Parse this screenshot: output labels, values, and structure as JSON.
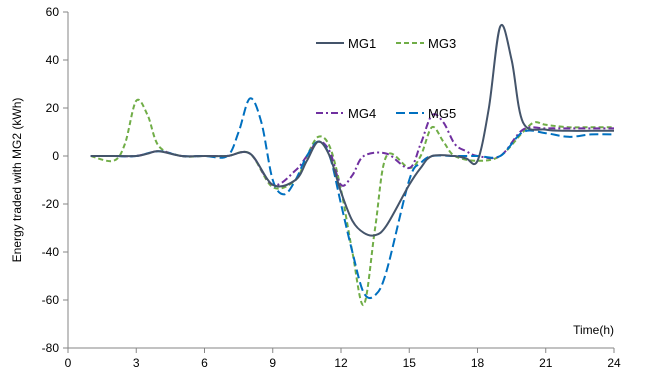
{
  "chart_data": {
    "type": "line",
    "title": "",
    "xlabel": "Time(h)",
    "ylabel": "Energy traded with MG2 (kWh)",
    "xlim": [
      0,
      24
    ],
    "ylim": [
      -80,
      60
    ],
    "xticks": [
      0,
      3,
      6,
      9,
      12,
      15,
      18,
      21,
      24
    ],
    "yticks": [
      -80,
      -60,
      -40,
      -20,
      0,
      20,
      40,
      60
    ],
    "grid": false,
    "legend_placement": "top-center",
    "series": [
      {
        "name": "MG1",
        "color": "#44546A",
        "dash": "solid",
        "points": [
          [
            1,
            0
          ],
          [
            2,
            0
          ],
          [
            3,
            0
          ],
          [
            3.5,
            1
          ],
          [
            4,
            2
          ],
          [
            5,
            0
          ],
          [
            6,
            0
          ],
          [
            7,
            0
          ],
          [
            8,
            1
          ],
          [
            9,
            -12
          ],
          [
            10,
            -10
          ],
          [
            10.5,
            -2
          ],
          [
            11,
            6
          ],
          [
            11.5,
            0
          ],
          [
            12,
            -15
          ],
          [
            12.5,
            -27
          ],
          [
            13,
            -32
          ],
          [
            13.5,
            -33
          ],
          [
            14,
            -29
          ],
          [
            15,
            -12
          ],
          [
            15.5,
            -5
          ],
          [
            16,
            0
          ],
          [
            17,
            0
          ],
          [
            17.5,
            -1
          ],
          [
            18,
            -2
          ],
          [
            18.5,
            20
          ],
          [
            19,
            54
          ],
          [
            19.5,
            40
          ],
          [
            20,
            14
          ],
          [
            21,
            11
          ],
          [
            22,
            10.5
          ],
          [
            23,
            10.5
          ],
          [
            24,
            10.5
          ]
        ]
      },
      {
        "name": "MG3",
        "color": "#70AD47",
        "dash": "5,3",
        "points": [
          [
            1,
            0
          ],
          [
            2,
            -2
          ],
          [
            2.5,
            5
          ],
          [
            3,
            23
          ],
          [
            3.5,
            17
          ],
          [
            4,
            4
          ],
          [
            5,
            0
          ],
          [
            6,
            0
          ],
          [
            7,
            0
          ],
          [
            8,
            1
          ],
          [
            9,
            -13
          ],
          [
            10,
            -10
          ],
          [
            10.5,
            0
          ],
          [
            11,
            8
          ],
          [
            11.5,
            4
          ],
          [
            12,
            -14
          ],
          [
            12.5,
            -40
          ],
          [
            13,
            -62
          ],
          [
            13.5,
            -30
          ],
          [
            14,
            0
          ],
          [
            15,
            -5
          ],
          [
            15.5,
            0
          ],
          [
            16,
            12
          ],
          [
            16.5,
            6
          ],
          [
            17,
            0
          ],
          [
            18,
            -2
          ],
          [
            19,
            0
          ],
          [
            20,
            10
          ],
          [
            20.5,
            14
          ],
          [
            21,
            13
          ],
          [
            22,
            12
          ],
          [
            23,
            12
          ],
          [
            24,
            12
          ]
        ]
      },
      {
        "name": "MG4",
        "color": "#7030A0",
        "dash": "7,3,2,3",
        "points": [
          [
            1,
            0
          ],
          [
            2,
            0
          ],
          [
            3,
            0
          ],
          [
            4,
            2
          ],
          [
            5,
            0
          ],
          [
            6,
            0
          ],
          [
            7,
            0
          ],
          [
            8,
            1
          ],
          [
            9,
            -12
          ],
          [
            10,
            -6
          ],
          [
            10.5,
            0
          ],
          [
            11,
            6
          ],
          [
            11.5,
            2
          ],
          [
            12,
            -12
          ],
          [
            12.5,
            -8
          ],
          [
            13,
            0
          ],
          [
            14,
            1
          ],
          [
            15,
            -5
          ],
          [
            15.5,
            5
          ],
          [
            16,
            17
          ],
          [
            16.5,
            14
          ],
          [
            17,
            5
          ],
          [
            17.5,
            2
          ],
          [
            18,
            0
          ],
          [
            19,
            0
          ],
          [
            20,
            11
          ],
          [
            21,
            11.5
          ],
          [
            22,
            11.5
          ],
          [
            23,
            11.5
          ],
          [
            24,
            11.5
          ]
        ]
      },
      {
        "name": "MG5",
        "color": "#0070C0",
        "dash": "9,4",
        "points": [
          [
            1,
            0
          ],
          [
            2,
            0
          ],
          [
            3,
            0
          ],
          [
            4,
            2
          ],
          [
            5,
            0
          ],
          [
            6,
            0
          ],
          [
            7,
            0
          ],
          [
            7.5,
            10
          ],
          [
            8,
            24
          ],
          [
            8.5,
            14
          ],
          [
            9,
            -10
          ],
          [
            9.5,
            -16
          ],
          [
            10,
            -10
          ],
          [
            10.5,
            0
          ],
          [
            11,
            6
          ],
          [
            11.5,
            0
          ],
          [
            12,
            -20
          ],
          [
            12.5,
            -40
          ],
          [
            13,
            -57
          ],
          [
            13.5,
            -58
          ],
          [
            14,
            -48
          ],
          [
            15,
            -10
          ],
          [
            15.5,
            -3
          ],
          [
            16,
            0
          ],
          [
            17,
            0
          ],
          [
            18,
            0
          ],
          [
            19,
            0
          ],
          [
            20,
            10
          ],
          [
            21,
            9.5
          ],
          [
            22,
            8
          ],
          [
            23,
            9
          ],
          [
            24,
            9
          ]
        ]
      }
    ]
  }
}
